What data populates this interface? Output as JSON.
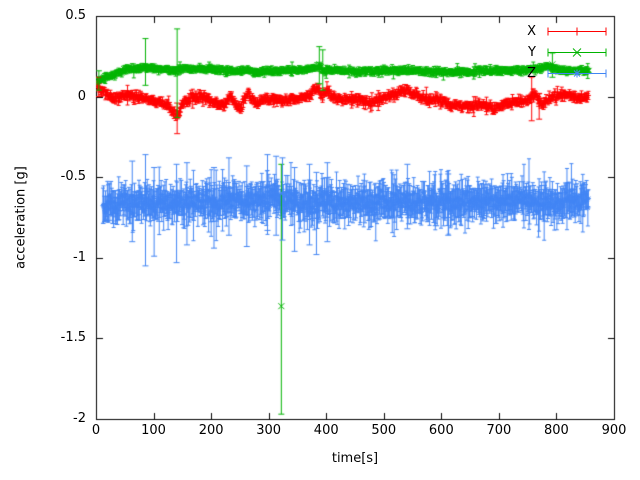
{
  "chart_data": {
    "type": "scatter-errorbars",
    "title": "",
    "xlabel": "time[s]",
    "ylabel": "acceleration [g]",
    "xlim": [
      0,
      900
    ],
    "ylim": [
      -2,
      0.5
    ],
    "xticks": [
      0,
      100,
      200,
      300,
      400,
      500,
      600,
      700,
      800,
      900
    ],
    "yticks": [
      0.5,
      0,
      -0.5,
      -1,
      -1.5,
      -2
    ],
    "ytick_labels": [
      "0.5",
      "0",
      "-0.5",
      "-1",
      "-1.5",
      "-2"
    ],
    "grid": false,
    "legend_position": "top-right-inside",
    "series": [
      {
        "name": "X",
        "color": "#ff0000",
        "marker": "plus",
        "sample_start": 2,
        "sample_end": 856,
        "sample_step": 1.1,
        "noise_sigma": 0.011,
        "err_base": 0.02,
        "err_big_chance": 0.04,
        "err_big_mult": 2.2,
        "trend": [
          [
            2,
            0.07
          ],
          [
            10,
            0.04
          ],
          [
            20,
            0.01
          ],
          [
            35,
            -0.01
          ],
          [
            55,
            0.01
          ],
          [
            75,
            0.0
          ],
          [
            95,
            -0.02
          ],
          [
            115,
            -0.03
          ],
          [
            135,
            -0.08
          ],
          [
            141,
            -0.12
          ],
          [
            150,
            -0.05
          ],
          [
            165,
            -0.01
          ],
          [
            185,
            0.0
          ],
          [
            205,
            -0.03
          ],
          [
            222,
            -0.06
          ],
          [
            232,
            0.0
          ],
          [
            242,
            -0.05
          ],
          [
            252,
            -0.07
          ],
          [
            262,
            0.02
          ],
          [
            272,
            -0.02
          ],
          [
            282,
            -0.05
          ],
          [
            295,
            -0.01
          ],
          [
            310,
            -0.02
          ],
          [
            330,
            -0.03
          ],
          [
            350,
            -0.01
          ],
          [
            370,
            0.0
          ],
          [
            385,
            0.06
          ],
          [
            392,
            -0.01
          ],
          [
            400,
            0.04
          ],
          [
            410,
            0.0
          ],
          [
            430,
            -0.02
          ],
          [
            455,
            -0.02
          ],
          [
            475,
            -0.04
          ],
          [
            495,
            -0.01
          ],
          [
            515,
            0.01
          ],
          [
            540,
            0.04
          ],
          [
            555,
            0.01
          ],
          [
            575,
            -0.02
          ],
          [
            595,
            -0.02
          ],
          [
            615,
            -0.05
          ],
          [
            640,
            -0.06
          ],
          [
            665,
            -0.05
          ],
          [
            690,
            -0.07
          ],
          [
            710,
            -0.05
          ],
          [
            730,
            -0.03
          ],
          [
            750,
            -0.02
          ],
          [
            762,
            0.01
          ],
          [
            775,
            -0.05
          ],
          [
            788,
            -0.01
          ],
          [
            805,
            0.01
          ],
          [
            825,
            0.0
          ],
          [
            856,
            -0.01
          ]
        ],
        "outliers": [
          {
            "x": 4,
            "y": 0.06,
            "lo": 0.0,
            "hi": 0.12
          },
          {
            "x": 141,
            "y": -0.13,
            "lo": -0.23,
            "hi": -0.04
          },
          {
            "x": 757,
            "y": 0.0,
            "lo": -0.15,
            "hi": 0.12
          },
          {
            "x": 770,
            "y": -0.06,
            "lo": -0.14,
            "hi": 0.02
          }
        ]
      },
      {
        "name": "Y",
        "color": "#00b400",
        "marker": "cross",
        "sample_start": 3,
        "sample_end": 857,
        "sample_step": 1.1,
        "noise_sigma": 0.007,
        "err_base": 0.016,
        "err_big_chance": 0.05,
        "err_big_mult": 2.0,
        "trend": [
          [
            3,
            0.1
          ],
          [
            12,
            0.11
          ],
          [
            25,
            0.13
          ],
          [
            40,
            0.15
          ],
          [
            55,
            0.17
          ],
          [
            70,
            0.17
          ],
          [
            90,
            0.18
          ],
          [
            110,
            0.17
          ],
          [
            130,
            0.16
          ],
          [
            150,
            0.17
          ],
          [
            175,
            0.17
          ],
          [
            200,
            0.17
          ],
          [
            230,
            0.16
          ],
          [
            260,
            0.16
          ],
          [
            290,
            0.155
          ],
          [
            320,
            0.16
          ],
          [
            350,
            0.165
          ],
          [
            375,
            0.17
          ],
          [
            388,
            0.19
          ],
          [
            395,
            0.16
          ],
          [
            410,
            0.165
          ],
          [
            440,
            0.16
          ],
          [
            470,
            0.155
          ],
          [
            500,
            0.16
          ],
          [
            530,
            0.165
          ],
          [
            560,
            0.16
          ],
          [
            590,
            0.155
          ],
          [
            620,
            0.15
          ],
          [
            650,
            0.155
          ],
          [
            680,
            0.16
          ],
          [
            710,
            0.16
          ],
          [
            740,
            0.165
          ],
          [
            765,
            0.17
          ],
          [
            785,
            0.185
          ],
          [
            800,
            0.17
          ],
          [
            820,
            0.16
          ],
          [
            840,
            0.16
          ],
          [
            857,
            0.16
          ]
        ],
        "outliers": [
          {
            "x": 5,
            "y": 0.1,
            "lo": 0.04,
            "hi": 0.16
          },
          {
            "x": 86,
            "y": 0.19,
            "lo": 0.07,
            "hi": 0.36
          },
          {
            "x": 141,
            "y": 0.17,
            "lo": -0.13,
            "hi": 0.42
          },
          {
            "x": 388,
            "y": 0.2,
            "lo": 0.08,
            "hi": 0.31
          },
          {
            "x": 394,
            "y": 0.17,
            "lo": 0.04,
            "hi": 0.29
          },
          {
            "x": 322,
            "y": -1.3,
            "lo": -1.97,
            "hi": -0.42
          },
          {
            "x": 793,
            "y": 0.2,
            "lo": 0.12,
            "hi": 0.27
          }
        ]
      },
      {
        "name": "Z",
        "color": "#4285f4",
        "marker": "asterisk",
        "sample_start": 12,
        "sample_end": 856,
        "sample_step": 1.1,
        "noise_sigma": 0.03,
        "err_base": 0.08,
        "err_big_chance": 0.08,
        "err_big_mult": 1.9,
        "trend": [
          [
            12,
            -0.66
          ],
          [
            60,
            -0.66
          ],
          [
            110,
            -0.655
          ],
          [
            160,
            -0.66
          ],
          [
            210,
            -0.655
          ],
          [
            260,
            -0.66
          ],
          [
            290,
            -0.645
          ],
          [
            310,
            -0.63
          ],
          [
            330,
            -0.64
          ],
          [
            360,
            -0.655
          ],
          [
            400,
            -0.66
          ],
          [
            450,
            -0.655
          ],
          [
            500,
            -0.65
          ],
          [
            550,
            -0.655
          ],
          [
            600,
            -0.66
          ],
          [
            650,
            -0.655
          ],
          [
            700,
            -0.65
          ],
          [
            750,
            -0.65
          ],
          [
            800,
            -0.655
          ],
          [
            856,
            -0.65
          ]
        ],
        "outliers": [
          {
            "x": 63,
            "y": -0.62,
            "lo": -0.9,
            "hi": -0.4
          },
          {
            "x": 86,
            "y": -0.67,
            "lo": -1.05,
            "hi": -0.36
          },
          {
            "x": 101,
            "y": -0.7,
            "lo": -0.99,
            "hi": -0.44
          },
          {
            "x": 140,
            "y": -0.72,
            "lo": -1.03,
            "hi": -0.42
          },
          {
            "x": 158,
            "y": -0.63,
            "lo": -0.92,
            "hi": -0.41
          },
          {
            "x": 205,
            "y": -0.67,
            "lo": -0.94,
            "hi": -0.44
          },
          {
            "x": 231,
            "y": -0.6,
            "lo": -0.86,
            "hi": -0.38
          },
          {
            "x": 262,
            "y": -0.66,
            "lo": -0.93,
            "hi": -0.43
          },
          {
            "x": 298,
            "y": -0.56,
            "lo": -0.83,
            "hi": -0.36
          },
          {
            "x": 313,
            "y": -0.58,
            "lo": -0.86,
            "hi": -0.37
          },
          {
            "x": 324,
            "y": -0.6,
            "lo": -0.89,
            "hi": -0.38
          },
          {
            "x": 345,
            "y": -0.68,
            "lo": -0.96,
            "hi": -0.44
          },
          {
            "x": 371,
            "y": -0.66,
            "lo": -0.92,
            "hi": -0.42
          },
          {
            "x": 383,
            "y": -0.7,
            "lo": -0.98,
            "hi": -0.47
          },
          {
            "x": 402,
            "y": -0.64,
            "lo": -0.9,
            "hi": -0.41
          },
          {
            "x": 541,
            "y": -0.6,
            "lo": -0.82,
            "hi": -0.42
          },
          {
            "x": 612,
            "y": -0.65,
            "lo": -0.86,
            "hi": -0.48
          }
        ]
      }
    ]
  }
}
